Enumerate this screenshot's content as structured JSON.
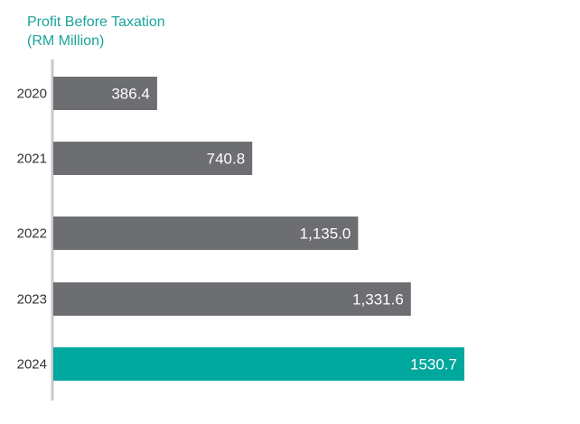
{
  "chart_data": {
    "type": "bar",
    "orientation": "horizontal",
    "title": "Profit Before Taxation",
    "subtitle": "(RM Million)",
    "categories": [
      "2020",
      "2021",
      "2022",
      "2023",
      "2024"
    ],
    "values": [
      386.4,
      740.8,
      1135.0,
      1331.6,
      1530.7
    ],
    "value_labels": [
      "386.4",
      "740.8",
      "1,135.0",
      "1,331.6",
      "1530.7"
    ],
    "highlight_index": 4,
    "xlim": [
      0,
      1530.7
    ],
    "grid": false,
    "legend": "none",
    "colors": {
      "default_bar": "#6d6e71",
      "highlight_bar": "#00a79d",
      "axis": "#c8c8c8",
      "title": "#1aa59a"
    }
  }
}
